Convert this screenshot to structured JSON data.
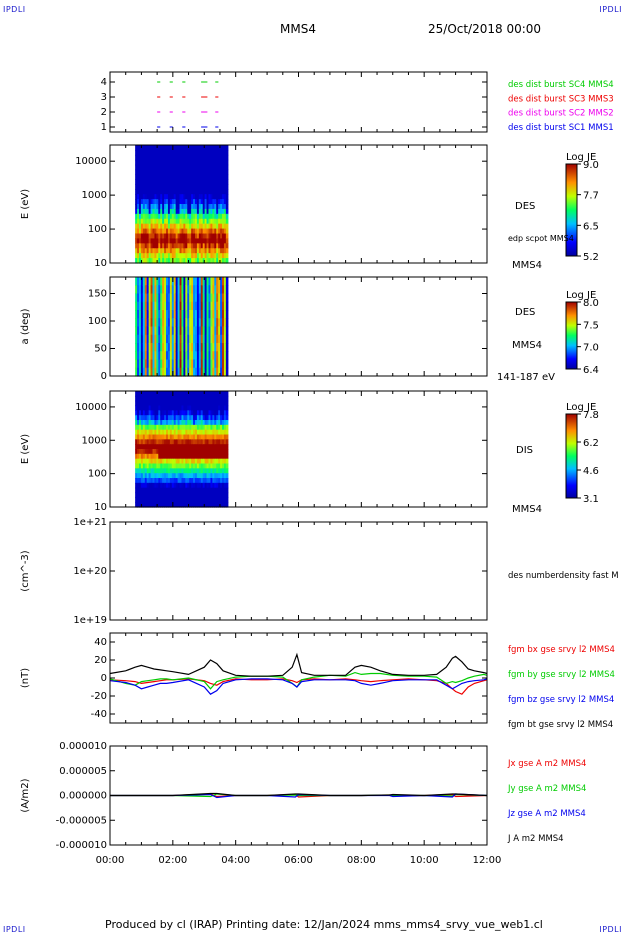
{
  "corner_labels": {
    "tl": "IPDLI",
    "tr": "IPDLI",
    "bl": "IPDLI",
    "br": "IPDLI"
  },
  "header": {
    "spacecraft": "MMS4",
    "datetime": "25/Oct/2018 00:00"
  },
  "footer": {
    "text": "Produced by cl (IRAP)   Printing date: 12/Jan/2024   mms_mms4_srvy_vue_web1.cl"
  },
  "colors": {
    "blue": "#0000ee",
    "magenta": "#ee00ee",
    "red": "#ee0000",
    "green": "#00cc00",
    "black": "#000000"
  },
  "chart_data": [
    {
      "type": "scatter",
      "panel": "availability",
      "yticks": [
        "1",
        "2",
        "3",
        "4"
      ],
      "series": [
        {
          "name": "des dist burst SC1 MMS1",
          "color": "#0000ee",
          "y": 1
        },
        {
          "name": "des dist burst SC2 MMS2",
          "color": "#ee00ee",
          "y": 2
        },
        {
          "name": "des dist burst SC3 MMS3",
          "color": "#ee0000",
          "y": 3
        },
        {
          "name": "des dist burst SC4 MMS4",
          "color": "#00cc00",
          "y": 4
        }
      ]
    },
    {
      "type": "heatmap",
      "panel": "des-energy",
      "ylabel": "E (eV)",
      "yscale": "log",
      "ylim": [
        10,
        30000
      ],
      "yticks": [
        "10",
        "100",
        "1000",
        "10000"
      ],
      "data_range_hours": [
        0.8,
        3.75
      ],
      "labels": [
        "DES",
        "edp scpot MMS4",
        "MMS4"
      ],
      "colorbar": {
        "title": "Log JE",
        "ticks": [
          "9.0",
          "7.7",
          "6.5",
          "5.2"
        ]
      }
    },
    {
      "type": "heatmap",
      "panel": "des-pitch",
      "ylabel": "a (deg)",
      "ylim": [
        0,
        180
      ],
      "yticks": [
        "0",
        "50",
        "100",
        "150"
      ],
      "data_range_hours": [
        0.8,
        3.75
      ],
      "labels": [
        "DES",
        "MMS4",
        "141-187 eV"
      ],
      "colorbar": {
        "title": "Log JE",
        "ticks": [
          "8.0",
          "7.5",
          "7.0",
          "6.4"
        ]
      }
    },
    {
      "type": "heatmap",
      "panel": "dis-energy",
      "ylabel": "E (eV)",
      "yscale": "log",
      "ylim": [
        10,
        30000
      ],
      "yticks": [
        "10",
        "100",
        "1000",
        "10000"
      ],
      "data_range_hours": [
        0.8,
        3.75
      ],
      "labels": [
        "DIS",
        "MMS4"
      ],
      "colorbar": {
        "title": "Log JE",
        "ticks": [
          "7.8",
          "6.2",
          "4.6",
          "3.1"
        ]
      }
    },
    {
      "type": "line",
      "panel": "density",
      "ylabel": "(cm^-3)",
      "yscale": "log",
      "yticks": [
        "1e+19",
        "1e+20",
        "1e+21"
      ],
      "series": [
        {
          "name": "des numberdensity fast M",
          "color": "#000000",
          "values": []
        }
      ]
    },
    {
      "type": "line",
      "panel": "fgm",
      "ylabel": "(nT)",
      "ylim": [
        -50,
        50
      ],
      "yticks": [
        "-40",
        "-20",
        "0",
        "20",
        "40"
      ],
      "x_hours": [
        0,
        0.5,
        0.8,
        1.0,
        1.2,
        1.4,
        1.6,
        1.8,
        2.0,
        2.5,
        3.0,
        3.2,
        3.4,
        3.6,
        4.0,
        4.5,
        5.0,
        5.5,
        5.8,
        5.95,
        6.1,
        6.5,
        7.0,
        7.5,
        7.8,
        8.0,
        8.3,
        8.6,
        9.0,
        9.5,
        10.0,
        10.4,
        10.7,
        10.9,
        11.0,
        11.2,
        11.4,
        11.6,
        11.9,
        12.0
      ],
      "series": [
        {
          "name": "fgm bx gse srvy l2 MMS4",
          "color": "#ee0000",
          "values": [
            -2,
            -3,
            -4,
            -6,
            -5,
            -4,
            -3,
            -2,
            -2,
            -1,
            -3,
            -6,
            -8,
            -4,
            -1,
            -2,
            -2,
            -1,
            -3,
            -5,
            -2,
            -1,
            -2,
            -1,
            -2,
            -3,
            -4,
            -3,
            -2,
            -1,
            -2,
            -3,
            -6,
            -12,
            -15,
            -18,
            -10,
            -6,
            -3,
            -2
          ]
        },
        {
          "name": "fgm by gse srvy l2 MMS4",
          "color": "#00cc00",
          "values": [
            -1,
            -6,
            -8,
            -4,
            -3,
            -2,
            -1,
            -1,
            -2,
            0,
            -4,
            -12,
            -4,
            -2,
            1,
            2,
            2,
            1,
            -6,
            -10,
            -2,
            1,
            3,
            2,
            6,
            4,
            5,
            5,
            3,
            2,
            2,
            1,
            -6,
            -4,
            -5,
            -3,
            0,
            2,
            4,
            3
          ]
        },
        {
          "name": "fgm bz gse srvy l2 MMS4",
          "color": "#0000ee",
          "values": [
            -3,
            -5,
            -8,
            -12,
            -10,
            -8,
            -6,
            -6,
            -5,
            -2,
            -10,
            -18,
            -14,
            -6,
            -2,
            -1,
            -1,
            -2,
            -6,
            -10,
            -4,
            -2,
            -2,
            -2,
            -3,
            -6,
            -8,
            -6,
            -3,
            -2,
            -2,
            -2,
            -8,
            -12,
            -10,
            -6,
            -4,
            -3,
            -2,
            -1
          ]
        },
        {
          "name": "fgm bt gse srvy l2 MMS4",
          "color": "#000000",
          "values": [
            5,
            8,
            12,
            14,
            12,
            10,
            9,
            8,
            7,
            4,
            12,
            20,
            16,
            8,
            3,
            2,
            2,
            3,
            12,
            26,
            6,
            3,
            3,
            3,
            12,
            14,
            12,
            8,
            4,
            3,
            3,
            4,
            12,
            22,
            24,
            18,
            10,
            8,
            6,
            5
          ]
        }
      ]
    },
    {
      "type": "line",
      "panel": "current",
      "ylabel": "(A/m2)",
      "ylim": [
        -1e-05,
        1e-05
      ],
      "yticks": [
        "-0.000010",
        "-0.000005",
        "0.000000",
        "0.000005",
        "0.000010"
      ],
      "x_hours": [
        0,
        1,
        2,
        3.2,
        3.4,
        4,
        5,
        5.9,
        6,
        7,
        8,
        8.9,
        9,
        10,
        10.9,
        11,
        12
      ],
      "series": [
        {
          "name": "Jx gse A m2 MMS4",
          "color": "#ee0000",
          "values": [
            0,
            0,
            0,
            3e-07,
            -2e-07,
            0,
            0,
            2e-07,
            -3e-07,
            0,
            0,
            1e-07,
            -1e-07,
            0,
            2e-07,
            -2e-07,
            0
          ]
        },
        {
          "name": "Jy gse A m2 MMS4",
          "color": "#00cc00",
          "values": [
            0,
            0,
            0,
            -2e-07,
            3e-07,
            0,
            0,
            1e-07,
            0,
            0,
            0,
            1e-07,
            0,
            0,
            -1e-07,
            2e-07,
            0
          ]
        },
        {
          "name": "Jz gse A m2 MMS4",
          "color": "#0000ee",
          "values": [
            0,
            0,
            0,
            2e-07,
            -4e-07,
            0,
            0,
            -3e-07,
            2e-07,
            0,
            0,
            0,
            -2e-07,
            0,
            -3e-07,
            3e-07,
            0
          ]
        },
        {
          "name": "J A m2 MMS4",
          "color": "#000000",
          "values": [
            0,
            0,
            0,
            4e-07,
            4e-07,
            0,
            0,
            3e-07,
            3e-07,
            0,
            0,
            1e-07,
            2e-07,
            0,
            3e-07,
            3e-07,
            0
          ]
        }
      ]
    }
  ],
  "time_axis": {
    "xlim_hours": [
      0,
      12
    ],
    "ticks": [
      "00:00",
      "02:00",
      "04:00",
      "06:00",
      "08:00",
      "10:00",
      "12:00"
    ]
  }
}
